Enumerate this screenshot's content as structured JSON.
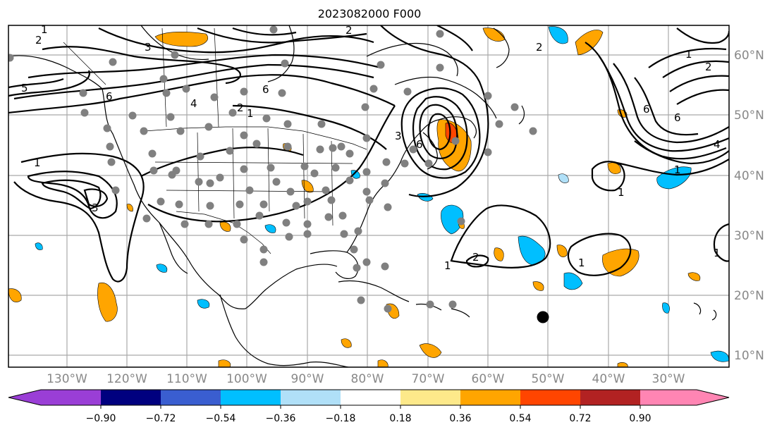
{
  "title": "2023082000 F000",
  "map": {
    "longitude_labels": [
      "130°W",
      "120°W",
      "110°W",
      "100°W",
      "90°W",
      "80°W",
      "70°W",
      "60°W",
      "50°W",
      "40°W",
      "30°W"
    ],
    "latitude_labels": [
      "60°N",
      "50°N",
      "40°N",
      "30°N",
      "20°N",
      "10°N"
    ],
    "contour_labels": [
      "1",
      "2",
      "3",
      "4",
      "5",
      "6"
    ],
    "colors": {
      "ocean": "#ffffff",
      "coastline": "#000000",
      "grid": "#a9a9a9",
      "station_dot": "#808080",
      "storm_marker": "#000000"
    }
  },
  "colorbar": {
    "tick_labels": [
      "−0.90",
      "−0.72",
      "−0.54",
      "−0.36",
      "−0.18",
      "0.18",
      "0.36",
      "0.54",
      "0.72",
      "0.90"
    ],
    "colors": [
      "#9a3ed6",
      "#00007f",
      "#3a5ed0",
      "#00bfff",
      "#b0e0f8",
      "#ffffff",
      "#fde98a",
      "#ffa500",
      "#ff4500",
      "#b22222",
      "#ff85b3"
    ]
  }
}
